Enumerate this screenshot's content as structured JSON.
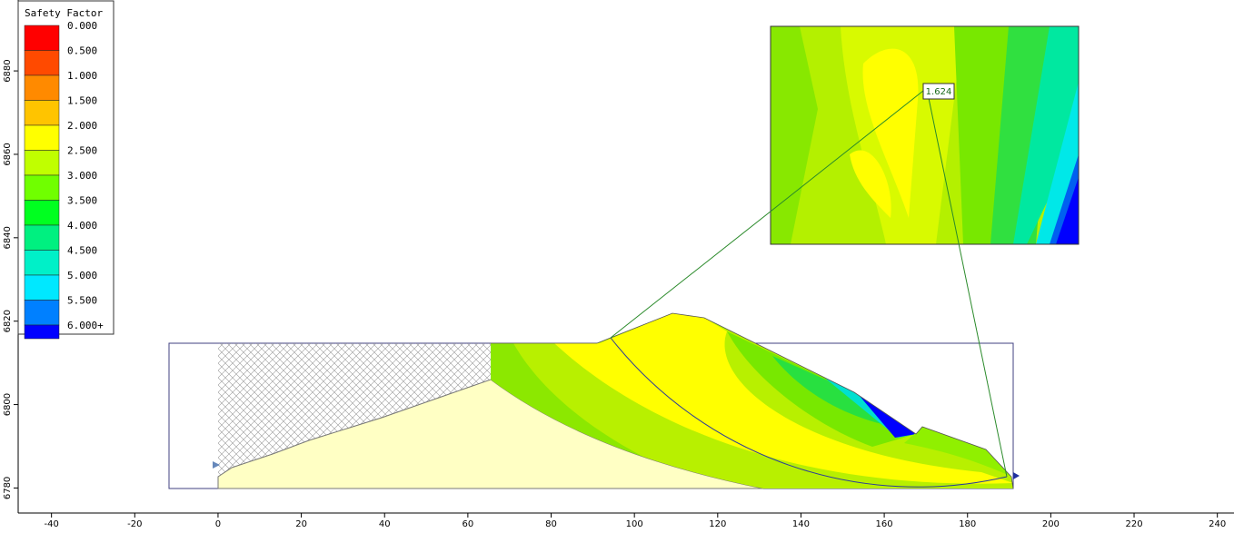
{
  "chart_data": {
    "type": "contour",
    "xlim": [
      -48,
      244
    ],
    "ylim": [
      6774,
      6897
    ],
    "xticks": [
      -40,
      -20,
      0,
      20,
      40,
      60,
      80,
      100,
      120,
      140,
      160,
      180,
      200,
      220,
      240
    ],
    "yticks": [
      6780,
      6800,
      6820,
      6840,
      6860,
      6880
    ],
    "legend": {
      "title": "Safety Factor",
      "entries": [
        {
          "value": 0,
          "label": "0.000",
          "color": "#ff0000"
        },
        {
          "value": 0.5,
          "label": "0.500",
          "color": "#ff4a00"
        },
        {
          "value": 1,
          "label": "1.000",
          "color": "#ff8a00"
        },
        {
          "value": 1.5,
          "label": "1.500",
          "color": "#ffc400"
        },
        {
          "value": 2,
          "label": "2.000",
          "color": "#ffff00"
        },
        {
          "value": 2.5,
          "label": "2.500",
          "color": "#c0ff00"
        },
        {
          "value": 3,
          "label": "3.000",
          "color": "#70ff00"
        },
        {
          "value": 3.5,
          "label": "3.500",
          "color": "#00ff20"
        },
        {
          "value": 4,
          "label": "4.000",
          "color": "#00f080"
        },
        {
          "value": 4.5,
          "label": "4.500",
          "color": "#00f0c8"
        },
        {
          "value": 5,
          "label": "5.000",
          "color": "#00e8ff"
        },
        {
          "value": 5.5,
          "label": "5.500",
          "color": "#0080ff"
        },
        {
          "value": 6,
          "label": "6.000+",
          "color": "#0000ff"
        }
      ]
    },
    "annotation": {
      "value": 1.624
    }
  }
}
